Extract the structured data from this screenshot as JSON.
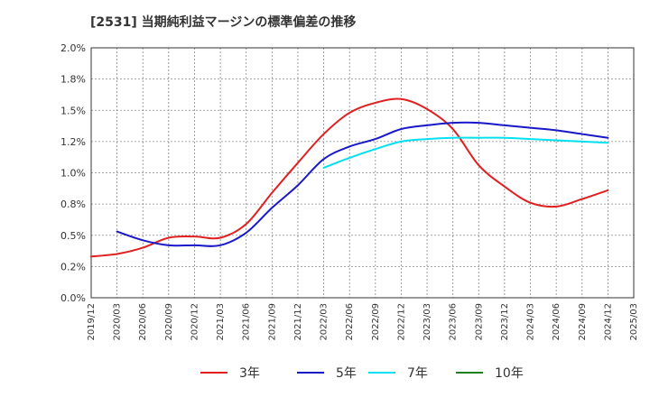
{
  "chart_data": {
    "type": "line",
    "title": "[2531]  当期純利益マージンの標準偏差の推移",
    "xlabel": "",
    "ylabel": "",
    "ylim": [
      0,
      2.0
    ],
    "yticks": [
      {
        "value": 0.0,
        "label": "0.0%"
      },
      {
        "value": 0.25,
        "label": "0.2%"
      },
      {
        "value": 0.5,
        "label": "0.5%"
      },
      {
        "value": 0.75,
        "label": "0.8%"
      },
      {
        "value": 1.0,
        "label": "1.0%"
      },
      {
        "value": 1.25,
        "label": "1.2%"
      },
      {
        "value": 1.5,
        "label": "1.5%"
      },
      {
        "value": 1.75,
        "label": "1.8%"
      },
      {
        "value": 2.0,
        "label": "2.0%"
      }
    ],
    "x_categories": [
      "2019/12",
      "2020/03",
      "2020/06",
      "2020/09",
      "2020/12",
      "2021/03",
      "2021/06",
      "2021/09",
      "2021/12",
      "2022/03",
      "2022/06",
      "2022/09",
      "2022/12",
      "2023/03",
      "2023/06",
      "2023/09",
      "2023/12",
      "2024/03",
      "2024/06",
      "2024/09",
      "2024/12",
      "2025/03"
    ],
    "grid": true,
    "legend_position": "bottom",
    "series": [
      {
        "name": "3年",
        "color": "#e02020",
        "points": [
          {
            "x": "2019/12",
            "y": 0.33
          },
          {
            "x": "2020/03",
            "y": 0.35
          },
          {
            "x": "2020/06",
            "y": 0.4
          },
          {
            "x": "2020/09",
            "y": 0.48
          },
          {
            "x": "2020/12",
            "y": 0.49
          },
          {
            "x": "2021/03",
            "y": 0.48
          },
          {
            "x": "2021/06",
            "y": 0.59
          },
          {
            "x": "2021/09",
            "y": 0.84
          },
          {
            "x": "2021/12",
            "y": 1.08
          },
          {
            "x": "2022/03",
            "y": 1.31
          },
          {
            "x": "2022/06",
            "y": 1.48
          },
          {
            "x": "2022/09",
            "y": 1.56
          },
          {
            "x": "2022/12",
            "y": 1.59
          },
          {
            "x": "2023/03",
            "y": 1.51
          },
          {
            "x": "2023/06",
            "y": 1.35
          },
          {
            "x": "2023/09",
            "y": 1.06
          },
          {
            "x": "2023/12",
            "y": 0.89
          },
          {
            "x": "2024/03",
            "y": 0.76
          },
          {
            "x": "2024/06",
            "y": 0.73
          },
          {
            "x": "2024/09",
            "y": 0.79
          },
          {
            "x": "2024/12",
            "y": 0.86
          }
        ]
      },
      {
        "name": "5年",
        "color": "#1818c8",
        "points": [
          {
            "x": "2020/03",
            "y": 0.53
          },
          {
            "x": "2020/06",
            "y": 0.46
          },
          {
            "x": "2020/09",
            "y": 0.42
          },
          {
            "x": "2020/12",
            "y": 0.42
          },
          {
            "x": "2021/03",
            "y": 0.42
          },
          {
            "x": "2021/06",
            "y": 0.52
          },
          {
            "x": "2021/09",
            "y": 0.72
          },
          {
            "x": "2021/12",
            "y": 0.9
          },
          {
            "x": "2022/03",
            "y": 1.11
          },
          {
            "x": "2022/06",
            "y": 1.21
          },
          {
            "x": "2022/09",
            "y": 1.27
          },
          {
            "x": "2022/12",
            "y": 1.35
          },
          {
            "x": "2023/03",
            "y": 1.38
          },
          {
            "x": "2023/06",
            "y": 1.4
          },
          {
            "x": "2023/09",
            "y": 1.4
          },
          {
            "x": "2023/12",
            "y": 1.38
          },
          {
            "x": "2024/03",
            "y": 1.36
          },
          {
            "x": "2024/06",
            "y": 1.34
          },
          {
            "x": "2024/09",
            "y": 1.31
          },
          {
            "x": "2024/12",
            "y": 1.28
          }
        ]
      },
      {
        "name": "7年",
        "color": "#00e0f0",
        "points": [
          {
            "x": "2022/03",
            "y": 1.04
          },
          {
            "x": "2022/06",
            "y": 1.12
          },
          {
            "x": "2022/09",
            "y": 1.19
          },
          {
            "x": "2022/12",
            "y": 1.25
          },
          {
            "x": "2023/03",
            "y": 1.27
          },
          {
            "x": "2023/06",
            "y": 1.28
          },
          {
            "x": "2023/09",
            "y": 1.28
          },
          {
            "x": "2023/12",
            "y": 1.28
          },
          {
            "x": "2024/03",
            "y": 1.27
          },
          {
            "x": "2024/06",
            "y": 1.26
          },
          {
            "x": "2024/09",
            "y": 1.25
          },
          {
            "x": "2024/12",
            "y": 1.24
          }
        ]
      },
      {
        "name": "10年",
        "color": "#208020",
        "points": []
      }
    ]
  }
}
